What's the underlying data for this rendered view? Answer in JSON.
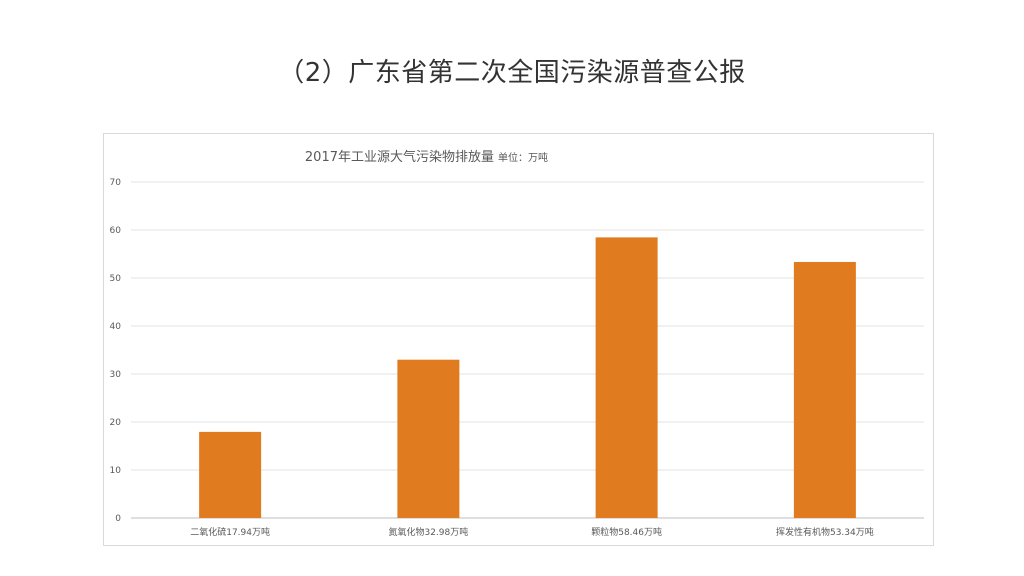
{
  "slide": {
    "title": "（2）广东省第二次全国污染源普查公报"
  },
  "chart_data": {
    "type": "bar",
    "title": "2017年工业源大气污染物排放量",
    "subtitle": "单位：万吨",
    "categories": [
      "二氧化硫17.94万吨",
      "氮氧化物32.98万吨",
      "颗粒物58.46万吨",
      "挥发性有机物53.34万吨"
    ],
    "values": [
      17.94,
      32.98,
      58.46,
      53.34
    ],
    "ylim": [
      0,
      70
    ],
    "yticks": [
      0,
      10,
      20,
      30,
      40,
      50,
      60,
      70
    ],
    "grid": true,
    "legend": "none",
    "bar_color": "#E07B20"
  }
}
